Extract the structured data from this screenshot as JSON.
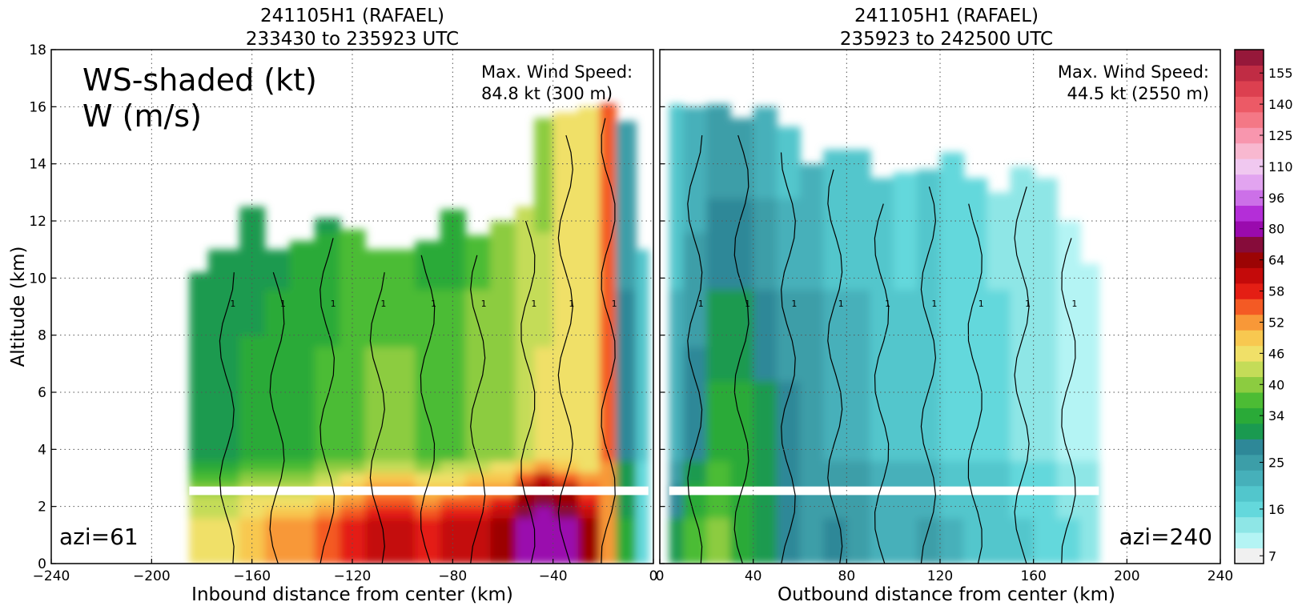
{
  "colors": {
    "contour_positive": "#000000",
    "contour_negative": "#808080",
    "gridline": "#555555",
    "missing_band": "#ffffff"
  },
  "colorbar": {
    "levels": [
      7,
      10,
      13,
      16,
      19,
      22,
      25,
      28,
      31,
      34,
      37,
      40,
      43,
      46,
      49,
      52,
      55,
      58,
      61,
      64,
      72,
      80,
      88,
      96,
      103,
      110,
      117,
      125,
      132,
      140,
      148,
      155,
      163
    ],
    "colors": [
      "#f0f0f0",
      "#b4f4f4",
      "#8ee6e6",
      "#64d8dc",
      "#52c6cc",
      "#46b0ba",
      "#3c9ea8",
      "#2e8898",
      "#1a9a50",
      "#2aaa38",
      "#4cbc34",
      "#8ccc40",
      "#c4dc58",
      "#f0e068",
      "#f8c850",
      "#f89838",
      "#f45a24",
      "#e41e14",
      "#c40a0a",
      "#9c0404",
      "#860c3a",
      "#9a0aae",
      "#b42ed8",
      "#cc70e8",
      "#e2a4f0",
      "#f0c8f0",
      "#f8b8d0",
      "#f896ae",
      "#f47886",
      "#ec5a66",
      "#dc4050",
      "#c02c44",
      "#96183a"
    ],
    "tick_labels": [
      "7",
      "16",
      "25",
      "34",
      "40",
      "46",
      "52",
      "58",
      "64",
      "80",
      "96",
      "110",
      "125",
      "140",
      "155"
    ],
    "tick_values": [
      7,
      16,
      25,
      34,
      40,
      46,
      52,
      58,
      64,
      80,
      96,
      110,
      125,
      140,
      155
    ]
  },
  "chart_data": [
    {
      "type": "heatmap",
      "panel": "left",
      "title_line1": "241105H1 (RAFAEL)",
      "title_line2": "233430 to 235923 UTC",
      "xlabel": "Inbound distance from center (km)",
      "ylabel": "Altitude (km)",
      "xlim": [
        -240,
        0
      ],
      "ylim": [
        0,
        18
      ],
      "xticks": [
        -240,
        -200,
        -160,
        -120,
        -80,
        -40,
        0
      ],
      "yticks": [
        0,
        2,
        4,
        6,
        8,
        10,
        12,
        14,
        16,
        18
      ],
      "grid": true,
      "annotation_main_line1": "WS-shaded (kt)",
      "annotation_main_line2": "W (m/s)",
      "max_wind_label": "Max. Wind Speed:",
      "max_wind_value": "84.8 kt (300 m)",
      "azimuth_label": "azi=61",
      "shaded_variable": "wind speed (kt)",
      "contour_variable": "vertical velocity W (m/s)",
      "contour_label": "1",
      "data_extent_x": [
        -185,
        -2
      ],
      "missing_band_altitude_km": [
        2.4,
        2.7
      ],
      "field_profiles": [
        {
          "x": -185,
          "top_km": 10.2,
          "low": 46,
          "mid": 34,
          "up": 31
        },
        {
          "x": -170,
          "top_km": 11.0,
          "low": 46,
          "mid": 34,
          "up": 31
        },
        {
          "x": -160,
          "top_km": 12.5,
          "low": 49,
          "mid": 37,
          "up": 29
        },
        {
          "x": -150,
          "top_km": 11.0,
          "low": 52,
          "mid": 37,
          "up": 31
        },
        {
          "x": -140,
          "top_km": 11.3,
          "low": 52,
          "mid": 37,
          "up": 34
        },
        {
          "x": -130,
          "top_km": 12.1,
          "low": 55,
          "mid": 40,
          "up": 31
        },
        {
          "x": -120,
          "top_km": 11.7,
          "low": 58,
          "mid": 40,
          "up": 37
        },
        {
          "x": -110,
          "top_km": 11.0,
          "low": 61,
          "mid": 43,
          "up": 34
        },
        {
          "x": -100,
          "top_km": 11.0,
          "low": 61,
          "mid": 43,
          "up": 34
        },
        {
          "x": -90,
          "top_km": 11.3,
          "low": 58,
          "mid": 40,
          "up": 34
        },
        {
          "x": -80,
          "top_km": 12.4,
          "low": 61,
          "mid": 40,
          "up": 34
        },
        {
          "x": -70,
          "top_km": 11.5,
          "low": 61,
          "mid": 43,
          "up": 37
        },
        {
          "x": -60,
          "top_km": 12.0,
          "low": 64,
          "mid": 43,
          "up": 40
        },
        {
          "x": -50,
          "top_km": 12.5,
          "low": 80,
          "mid": 46,
          "up": 43
        },
        {
          "x": -45,
          "top_km": 15.6,
          "low": 84,
          "mid": 49,
          "up": 40
        },
        {
          "x": -35,
          "top_km": 15.8,
          "low": 80,
          "mid": 46,
          "up": 46
        },
        {
          "x": -25,
          "top_km": 16.0,
          "low": 64,
          "mid": 46,
          "up": 49
        },
        {
          "x": -18,
          "top_km": 16.1,
          "low": 52,
          "mid": 55,
          "up": 58
        },
        {
          "x": -12,
          "top_km": 15.5,
          "low": 34,
          "mid": 31,
          "up": 25
        },
        {
          "x": -2,
          "top_km": 11.0,
          "low": 16,
          "mid": 19,
          "up": 19
        }
      ]
    },
    {
      "type": "heatmap",
      "panel": "right",
      "title_line1": "241105H1 (RAFAEL)",
      "title_line2": "235923 to 242500 UTC",
      "xlabel": "Outbound distance from center (km)",
      "ylabel": "",
      "xlim": [
        0,
        240
      ],
      "ylim": [
        0,
        18
      ],
      "xticks": [
        0,
        40,
        80,
        120,
        160,
        200,
        240
      ],
      "yticks": [
        0,
        2,
        4,
        6,
        8,
        10,
        12,
        14,
        16,
        18
      ],
      "grid": true,
      "max_wind_label": "Max. Wind Speed:",
      "max_wind_value": "44.5 kt (2550 m)",
      "azimuth_label": "azi=240",
      "contour_label": "1",
      "data_extent_x": [
        4,
        188
      ],
      "missing_band_altitude_km": [
        2.4,
        2.7
      ],
      "field_profiles": [
        {
          "x": 5,
          "top_km": 16.1,
          "low": 31,
          "mid": 25,
          "up": 19
        },
        {
          "x": 15,
          "top_km": 16.0,
          "low": 37,
          "mid": 31,
          "up": 22
        },
        {
          "x": 25,
          "top_km": 16.1,
          "low": 40,
          "mid": 37,
          "up": 25
        },
        {
          "x": 35,
          "top_km": 15.6,
          "low": 34,
          "mid": 37,
          "up": 25
        },
        {
          "x": 45,
          "top_km": 16.0,
          "low": 31,
          "mid": 34,
          "up": 22
        },
        {
          "x": 55,
          "top_km": 15.3,
          "low": 28,
          "mid": 31,
          "up": 19
        },
        {
          "x": 65,
          "top_km": 14.0,
          "low": 25,
          "mid": 28,
          "up": 22
        },
        {
          "x": 75,
          "top_km": 14.5,
          "low": 28,
          "mid": 25,
          "up": 19
        },
        {
          "x": 85,
          "top_km": 14.5,
          "low": 25,
          "mid": 25,
          "up": 19
        },
        {
          "x": 95,
          "top_km": 13.5,
          "low": 22,
          "mid": 22,
          "up": 19
        },
        {
          "x": 105,
          "top_km": 13.7,
          "low": 22,
          "mid": 22,
          "up": 16
        },
        {
          "x": 115,
          "top_km": 13.8,
          "low": 25,
          "mid": 22,
          "up": 19
        },
        {
          "x": 125,
          "top_km": 14.4,
          "low": 22,
          "mid": 19,
          "up": 16
        },
        {
          "x": 135,
          "top_km": 13.5,
          "low": 19,
          "mid": 19,
          "up": 16
        },
        {
          "x": 145,
          "top_km": 13.0,
          "low": 19,
          "mid": 19,
          "up": 13
        },
        {
          "x": 155,
          "top_km": 13.9,
          "low": 19,
          "mid": 16,
          "up": 13
        },
        {
          "x": 165,
          "top_km": 13.5,
          "low": 16,
          "mid": 16,
          "up": 13
        },
        {
          "x": 175,
          "top_km": 12.0,
          "low": 16,
          "mid": 13,
          "up": 10
        },
        {
          "x": 185,
          "top_km": 10.5,
          "low": 13,
          "mid": 13,
          "up": 10
        }
      ]
    }
  ]
}
